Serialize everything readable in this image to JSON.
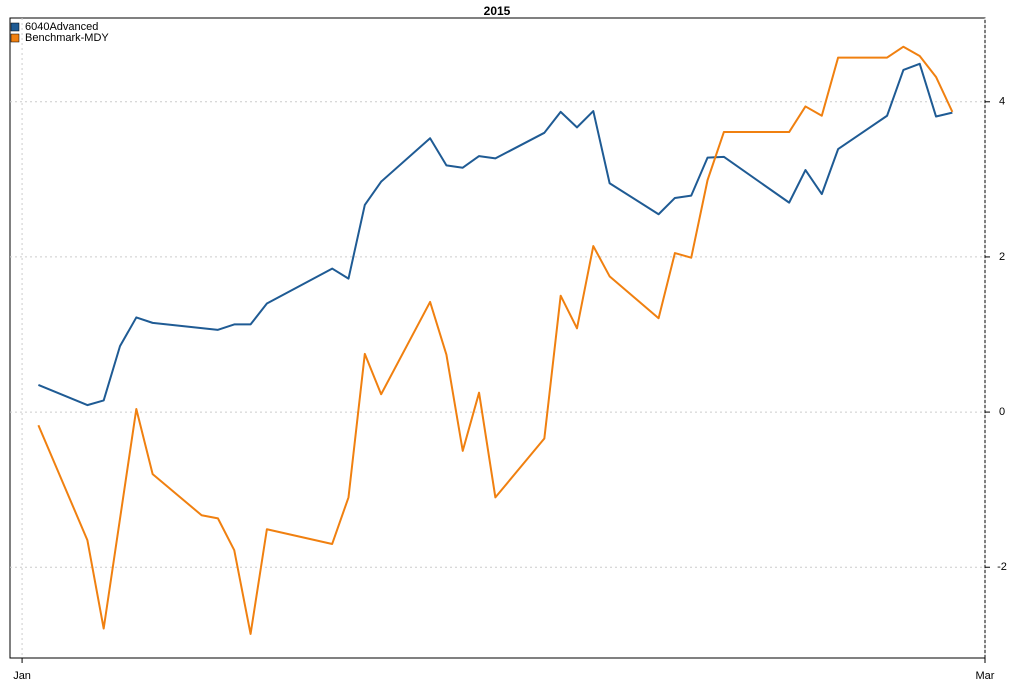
{
  "chart_data": {
    "type": "line",
    "title": "2015",
    "xlim": [
      0.26,
      60
    ],
    "xticks": [
      {
        "value": 1,
        "label": "Jan"
      },
      {
        "value": 60,
        "label": "Mar"
      }
    ],
    "ylim": [
      -3.17,
      5.08
    ],
    "yticks": [
      -2,
      0,
      2,
      4
    ],
    "grid": true,
    "legend": "top-left",
    "series": [
      {
        "name": "6040Advanced",
        "color": "#1f5b94",
        "x": [
          2,
          5,
          6,
          7,
          8,
          9,
          13,
          14,
          15,
          16,
          20,
          21,
          22,
          23,
          26,
          27,
          28,
          29,
          30,
          33,
          34,
          35,
          36,
          37,
          40,
          41,
          42,
          43,
          44,
          48,
          49,
          50,
          51,
          54,
          55,
          56,
          57,
          58
        ],
        "values": [
          0.35,
          0.09,
          0.15,
          0.85,
          1.22,
          1.15,
          1.06,
          1.13,
          1.13,
          1.4,
          1.85,
          1.72,
          2.67,
          2.97,
          3.53,
          3.18,
          3.15,
          3.3,
          3.27,
          3.6,
          3.87,
          3.67,
          3.88,
          2.95,
          2.55,
          2.76,
          2.79,
          3.28,
          3.29,
          2.7,
          3.12,
          2.81,
          3.39,
          3.82,
          4.41,
          4.49,
          3.81,
          3.86
        ]
      },
      {
        "name": "Benchmark-MDY",
        "color": "#f08010",
        "x": [
          2,
          5,
          6,
          8,
          9,
          12,
          13,
          14,
          15,
          16,
          20,
          21,
          22,
          23,
          26,
          27,
          28,
          29,
          30,
          33,
          34,
          35,
          36,
          37,
          40,
          41,
          42,
          43,
          44,
          48,
          49,
          50,
          51,
          54,
          55,
          56,
          57,
          58
        ],
        "values": [
          -0.17,
          -1.65,
          -2.79,
          0.04,
          -0.8,
          -1.33,
          -1.37,
          -1.78,
          -2.86,
          -1.51,
          -1.7,
          -1.1,
          0.75,
          0.23,
          1.42,
          0.74,
          -0.5,
          0.25,
          -1.1,
          -0.34,
          1.5,
          1.08,
          2.14,
          1.75,
          1.21,
          2.05,
          1.99,
          2.99,
          3.61,
          3.61,
          3.94,
          3.82,
          4.57,
          4.57,
          4.71,
          4.59,
          4.32,
          3.87
        ]
      }
    ]
  }
}
